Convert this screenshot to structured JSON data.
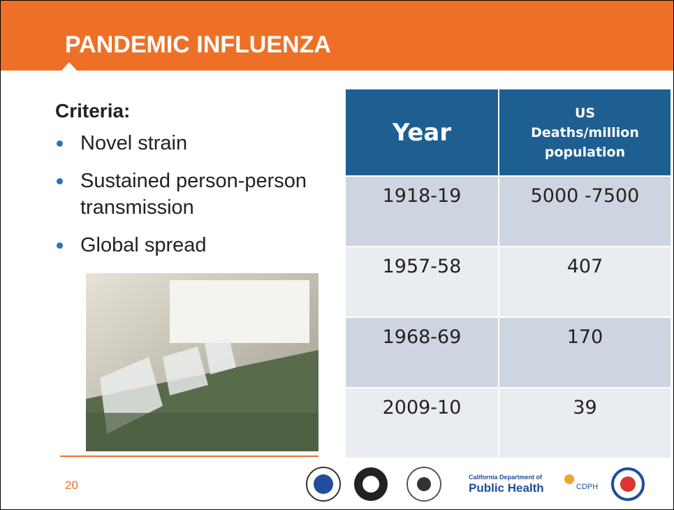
{
  "header": {
    "title": "PANDEMIC INFLUENZA"
  },
  "criteria": {
    "heading": "Criteria:",
    "bullets": [
      "Novel strain",
      "Sustained person-person transmission",
      "Global spread"
    ]
  },
  "table": {
    "headers": [
      [
        "Year"
      ],
      [
        "US",
        "Deaths/million",
        "population"
      ]
    ],
    "rows": [
      [
        "1918-19",
        "5000 -7500"
      ],
      [
        "1957-58",
        "407"
      ],
      [
        "1968-69",
        "170"
      ],
      [
        "2009-10",
        "39"
      ]
    ]
  },
  "footer": {
    "page_number": "20",
    "logo_text": {
      "department": "California Department of",
      "agency": "Public Health",
      "abbreviation": "CDPH"
    }
  }
}
